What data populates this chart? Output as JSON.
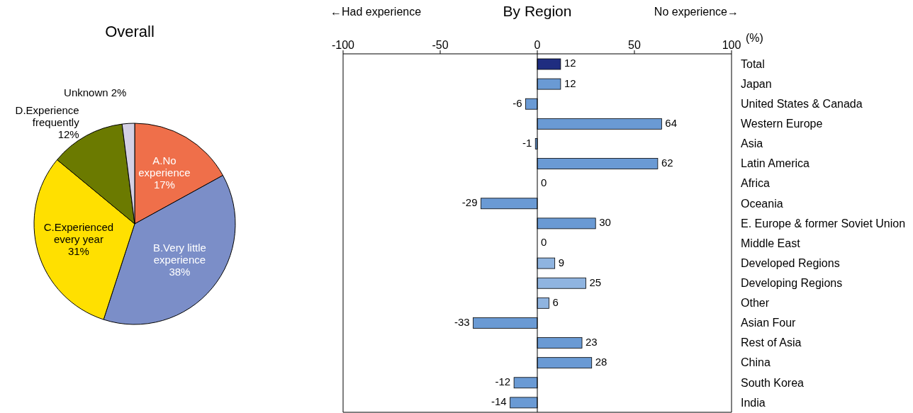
{
  "chart_data": [
    {
      "type": "pie",
      "title": "Overall",
      "categories": [
        "A.No experience",
        "B.Very little experience",
        "C.Experienced every year",
        "D.Experience frequently",
        "Unknown"
      ],
      "values": [
        17,
        38,
        31,
        12,
        2
      ],
      "colors": [
        "#ef6f4a",
        "#7b8ec8",
        "#ffe000",
        "#6b7a00",
        "#d4d0e4"
      ],
      "value_labels": [
        "17%",
        "38%",
        "31%",
        "12%",
        "2%"
      ]
    },
    {
      "type": "bar",
      "orientation": "horizontal",
      "title": "By Region",
      "xlabel": "(%)",
      "annotations": [
        "←Had experience",
        "No experience→"
      ],
      "categories": [
        "Total",
        "Japan",
        "United States & Canada",
        "Western Europe",
        "Asia",
        "Latin America",
        "Africa",
        "Oceania",
        "E. Europe & former Soviet Union",
        "Middle East",
        "Developed Regions",
        "Developing Regions",
        "Other",
        "Asian Four",
        "Rest of Asia",
        "China",
        "South Korea",
        "India"
      ],
      "values": [
        12,
        12,
        -6,
        64,
        -1,
        62,
        0,
        -29,
        30,
        0,
        9,
        25,
        6,
        -33,
        23,
        28,
        -12,
        -14
      ],
      "colors": [
        "#1f2d80",
        "#6a9ad4",
        "#6a9ad4",
        "#6a9ad4",
        "#6a9ad4",
        "#6a9ad4",
        "#6a9ad4",
        "#6a9ad4",
        "#6a9ad4",
        "#6a9ad4",
        "#8fb4e0",
        "#8fb4e0",
        "#8fb4e0",
        "#6a9ad4",
        "#6a9ad4",
        "#6a9ad4",
        "#6a9ad4",
        "#6a9ad4"
      ],
      "xlim": [
        -100,
        100
      ],
      "xticks": [
        -100,
        -50,
        0,
        50,
        100
      ],
      "data_labels": true,
      "ref_lines": [
        {
          "axis": "x",
          "value": 0,
          "color": "#000000"
        }
      ]
    }
  ]
}
